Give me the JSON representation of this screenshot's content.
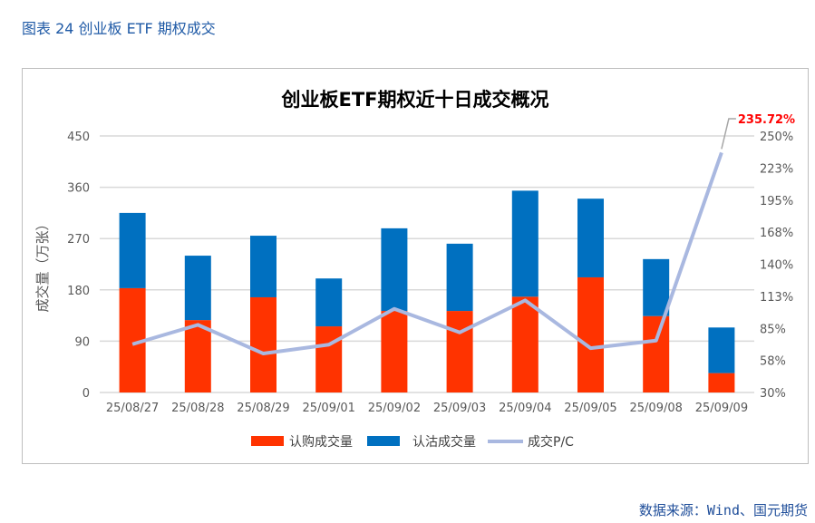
{
  "figure_title": "图表 24  创业板 ETF 期权成交",
  "source": "数据来源：Wind、国元期货",
  "chart_data": {
    "type": "bar",
    "stacked": true,
    "title": "创业板ETF期权近十日成交概况",
    "ylabel": "成交量（万张）",
    "ylim": [
      0,
      450
    ],
    "yticks": [
      "0",
      "90",
      "180",
      "270",
      "360",
      "450"
    ],
    "y2lim": [
      30,
      250
    ],
    "y2ticks": [
      "30%",
      "58%",
      "85%",
      "113%",
      "140%",
      "168%",
      "195%",
      "223%",
      "250%"
    ],
    "grid": true,
    "legend_position": "bottom",
    "categories": [
      "25/08/27",
      "25/08/28",
      "25/08/29",
      "25/09/01",
      "25/09/02",
      "25/09/03",
      "25/09/04",
      "25/09/05",
      "25/09/08",
      "25/09/09"
    ],
    "series": [
      {
        "name": "认购成交量",
        "type": "bar",
        "axis": "left",
        "color": "#ff3300",
        "values": [
          183,
          127,
          167,
          116,
          143,
          143,
          168,
          202,
          134,
          34
        ]
      },
      {
        "name": "认沽成交量",
        "type": "bar",
        "axis": "left",
        "color": "#0070c0",
        "values": [
          132,
          113,
          108,
          84,
          145,
          118,
          186,
          138,
          100,
          80
        ]
      },
      {
        "name": "成交P/C",
        "type": "line",
        "axis": "right",
        "unit": "%",
        "color": "#a9b8e0",
        "values": [
          71.4,
          88.0,
          63.4,
          71.0,
          101.7,
          81.5,
          109.0,
          68.0,
          74.5,
          235.72
        ]
      }
    ],
    "annotation": {
      "text": "235.72%",
      "color": "#ff0000"
    }
  }
}
